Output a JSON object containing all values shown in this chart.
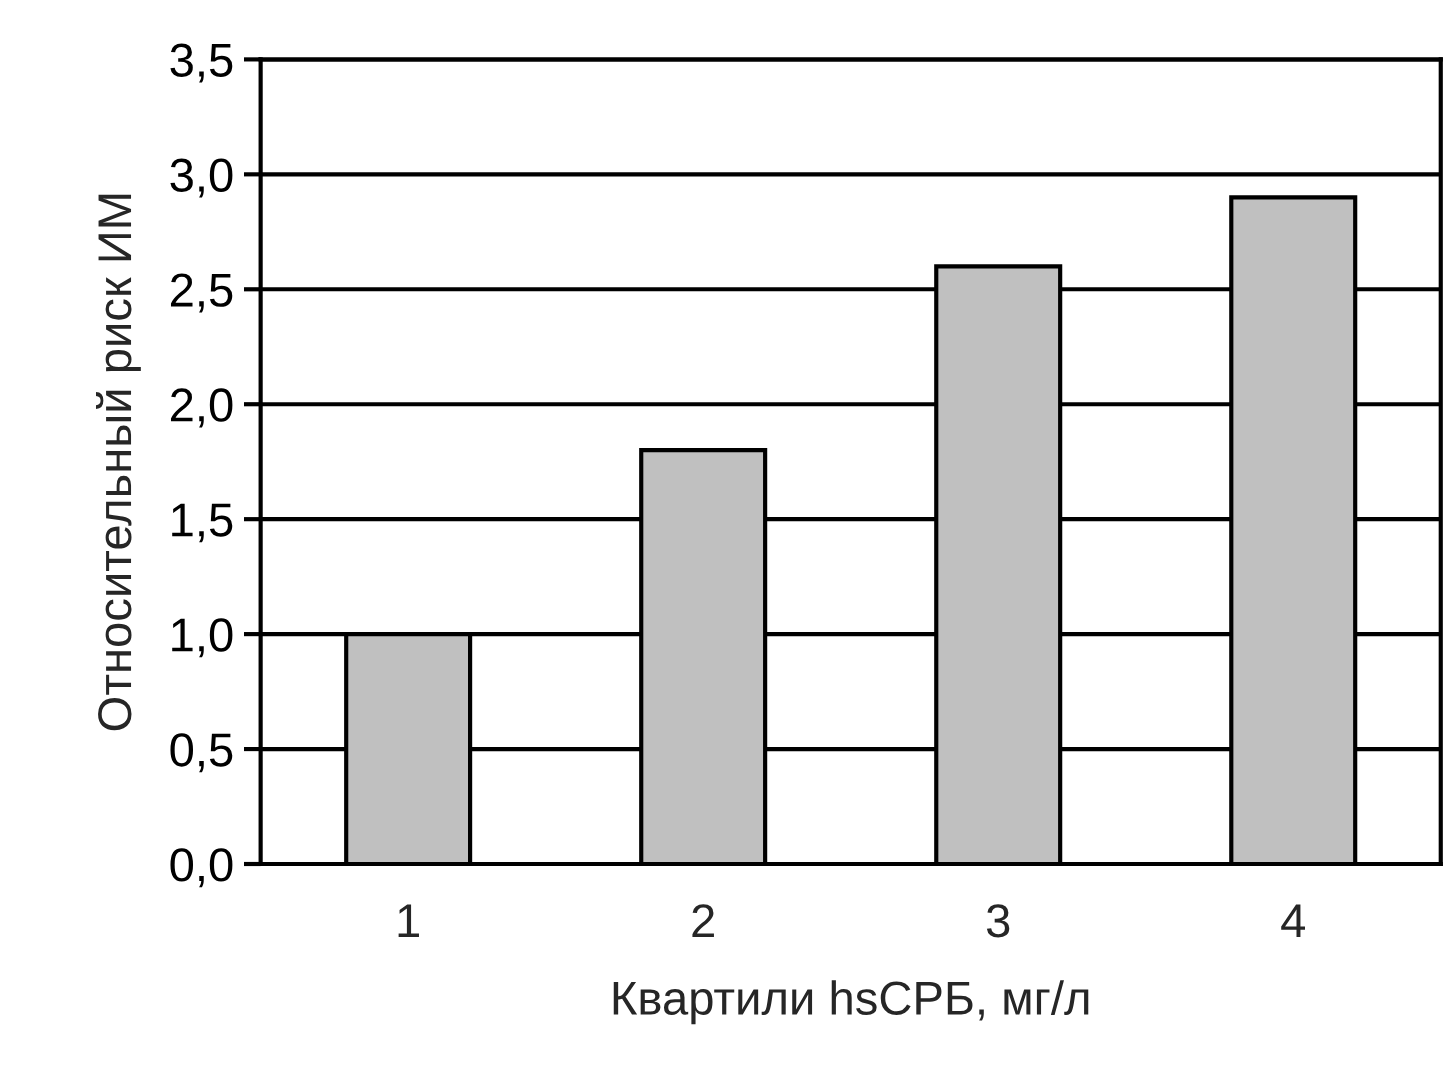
{
  "chart_data": {
    "type": "bar",
    "xlabel": "Квартили hsСРБ, мг/л",
    "ylabel": "Относительный риск ИМ",
    "categories": [
      "1",
      "2",
      "3",
      "4"
    ],
    "values": [
      1.0,
      1.8,
      2.6,
      2.9
    ],
    "color": "#c0c0c0",
    "ylim": [
      0,
      3.5
    ],
    "yticks": [
      {
        "value": 0,
        "label": "0,0"
      },
      {
        "value": 0.5,
        "label": "0,5"
      },
      {
        "value": 1.0,
        "label": "1,0"
      },
      {
        "value": 1.5,
        "label": "1,5"
      },
      {
        "value": 2.0,
        "label": "2,0"
      },
      {
        "value": 2.5,
        "label": "2,5"
      },
      {
        "value": 3.0,
        "label": "3,0"
      },
      {
        "value": 3.5,
        "label": "3,5"
      }
    ],
    "grid": "y"
  }
}
